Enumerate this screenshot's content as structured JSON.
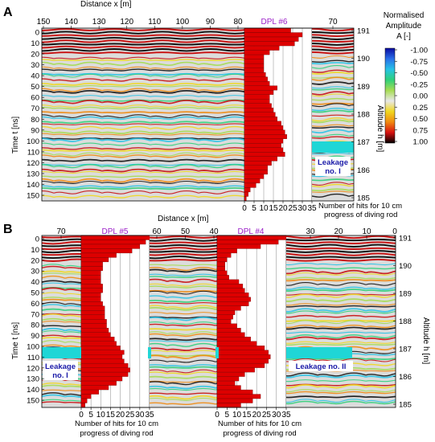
{
  "panel_a": {
    "letter": "A",
    "x_axis_title": "Distance  x [m]",
    "x_ticks_left": [
      "150",
      "140",
      "130",
      "120",
      "110",
      "100",
      "90",
      "80"
    ],
    "x_ticks_right": [
      "70"
    ],
    "y_axis_title": "Time  t [ns]",
    "t_ticks": [
      "0",
      "10",
      "20",
      "30",
      "40",
      "50",
      "60",
      "70",
      "80",
      "90",
      "100",
      "110",
      "120",
      "130",
      "140",
      "150"
    ],
    "alt_axis_title": "Altitude  h [m]",
    "alt_ticks": [
      "191",
      "190",
      "189",
      "188",
      "187",
      "186",
      "185"
    ],
    "dpl_title": "DPL #6",
    "dpl_x_ticks": [
      "0",
      "5",
      "10",
      "15",
      "20",
      "25",
      "30",
      "35"
    ],
    "dpl_x_title_line1": "Number of hits for 10 cm",
    "dpl_x_title_line2": "progress of diving rod",
    "leakage_line1": "Leakage",
    "leakage_line2": "no. I"
  },
  "panel_b": {
    "letter": "B",
    "x_axis_title": "Distance  x [m]",
    "x_ticks_seg1": [
      "70"
    ],
    "x_ticks_seg2": [
      "60",
      "50",
      "40"
    ],
    "x_ticks_seg3": [
      "30",
      "20",
      "10",
      "0"
    ],
    "y_axis_title": "Time  t [ns]",
    "t_ticks": [
      "0",
      "10",
      "20",
      "30",
      "40",
      "50",
      "60",
      "70",
      "80",
      "90",
      "100",
      "110",
      "120",
      "130",
      "140",
      "150"
    ],
    "alt_axis_title": "Altitude  h [m]",
    "alt_ticks": [
      "191",
      "190",
      "189",
      "188",
      "187",
      "186",
      "185"
    ],
    "dpl5_title": "DPL #5",
    "dpl4_title": "DPL #4",
    "dpl_x_ticks": [
      "0",
      "5",
      "10",
      "15",
      "20",
      "25",
      "30",
      "35"
    ],
    "dpl_x_title_line1": "Number of hits for 10 cm",
    "dpl_x_title_line2": "progress of diving rod",
    "leakage1_line1": "Leakage",
    "leakage1_line2": "no. I",
    "leakage2": "Leakage no. II"
  },
  "colorbar": {
    "title_line1": "Normalised",
    "title_line2": "Amplitude",
    "title_line3": "A [-]",
    "tick_labels": [
      "-1.00",
      "-0.75",
      "-0.50",
      "-0.25",
      "0.00",
      "0.25",
      "0.50",
      "0.75",
      "1.00"
    ],
    "colors": [
      "#0a0aa0",
      "#2a6ee8",
      "#27c2e6",
      "#2fd07a",
      "#a6dc52",
      "#e8e8e8",
      "#f0d820",
      "#f08a10",
      "#d81010",
      "#000000"
    ]
  },
  "colors": {
    "bar_red": "#dd0000",
    "leakage_cyan": "#1fd6d6",
    "leakage_text_blue": "#1a1aa8",
    "dpl_title_purple": "#9b1ec8"
  },
  "chart_data": [
    {
      "type": "bar",
      "title": "DPL #6",
      "xlabel": "Number of hits for 10 cm progress of diving rod",
      "ylabel": "Time  t [ns]",
      "orientation": "horizontal",
      "depth_ns": [
        0,
        4,
        8,
        12,
        16,
        20,
        24,
        28,
        32,
        36,
        40,
        44,
        48,
        52,
        56,
        60,
        64,
        68,
        72,
        76,
        80,
        84,
        88,
        92,
        96,
        100,
        104,
        108,
        112,
        116,
        120,
        124,
        128,
        132,
        136,
        140,
        144,
        148,
        152
      ],
      "values": [
        24,
        30,
        28,
        26,
        18,
        13,
        10,
        10,
        10,
        10,
        11,
        12,
        13,
        17,
        15,
        13,
        13,
        14,
        15,
        16,
        17,
        19,
        20,
        21,
        22,
        20,
        19,
        20,
        21,
        17,
        14,
        12,
        12,
        10,
        8,
        6,
        3,
        2,
        1
      ],
      "xlim": [
        0,
        35
      ]
    },
    {
      "type": "bar",
      "title": "DPL #5",
      "xlabel": "Number of hits for 10 cm progress of diving rod",
      "ylabel": "Time  t [ns]",
      "orientation": "horizontal",
      "depth_ns": [
        0,
        4,
        8,
        12,
        16,
        20,
        24,
        28,
        32,
        36,
        40,
        44,
        48,
        52,
        56,
        60,
        64,
        68,
        72,
        76,
        80,
        84,
        88,
        92,
        96,
        100,
        104,
        108,
        112,
        116,
        120,
        124,
        128,
        132,
        136,
        140,
        144,
        148,
        152
      ],
      "values": [
        36,
        33,
        30,
        26,
        18,
        14,
        11,
        11,
        10,
        10,
        10,
        11,
        11,
        10,
        10,
        11,
        12,
        12,
        12,
        13,
        13,
        14,
        15,
        17,
        18,
        20,
        22,
        21,
        22,
        24,
        25,
        24,
        21,
        18,
        14,
        9,
        5,
        3,
        2
      ],
      "xlim": [
        0,
        35
      ]
    },
    {
      "type": "bar",
      "title": "DPL #4",
      "xlabel": "Number of hits for 10 cm progress of diving rod",
      "ylabel": "Time  t [ns]",
      "orientation": "horizontal",
      "depth_ns": [
        0,
        4,
        8,
        12,
        16,
        20,
        24,
        28,
        32,
        36,
        40,
        44,
        48,
        52,
        56,
        60,
        64,
        68,
        72,
        76,
        80,
        84,
        88,
        92,
        96,
        100,
        104,
        108,
        112,
        116,
        120,
        124,
        128,
        132,
        136,
        140,
        144,
        148,
        152
      ],
      "values": [
        35,
        31,
        22,
        10,
        7,
        5,
        4,
        4,
        5,
        6,
        11,
        13,
        14,
        16,
        17,
        16,
        12,
        9,
        8,
        7,
        10,
        12,
        14,
        17,
        20,
        24,
        26,
        27,
        26,
        24,
        19,
        14,
        11,
        9,
        12,
        18,
        22,
        18,
        12
      ],
      "xlim": [
        0,
        35
      ]
    }
  ]
}
